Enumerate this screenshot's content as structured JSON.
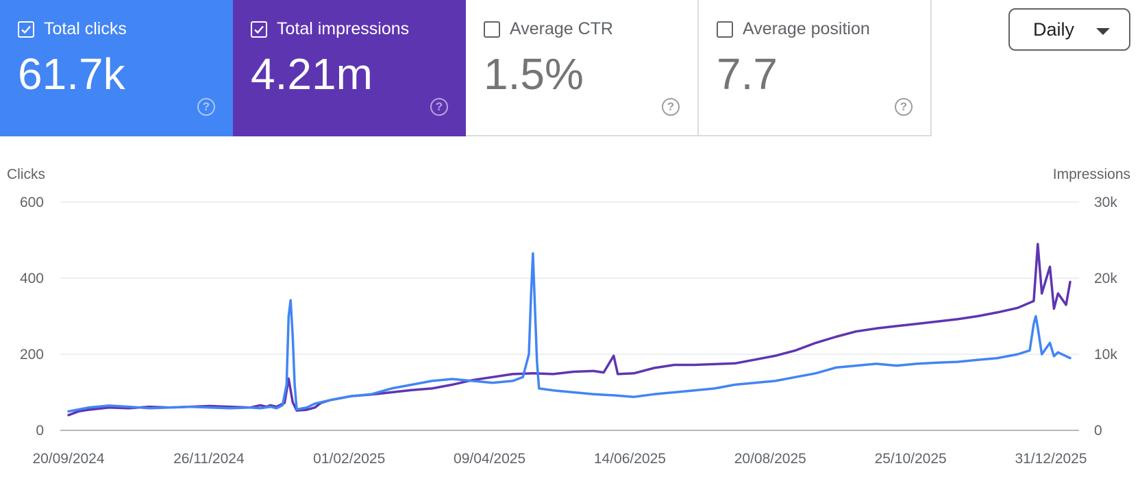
{
  "metrics": [
    {
      "label": "Total clicks",
      "value": "61.7k",
      "checked": true,
      "color": "#4285f4"
    },
    {
      "label": "Total impressions",
      "value": "4.21m",
      "checked": true,
      "color": "#5e35b1"
    },
    {
      "label": "Average CTR",
      "value": "1.5%",
      "checked": false,
      "color": "#ffffff"
    },
    {
      "label": "Average position",
      "value": "7.7",
      "checked": false,
      "color": "#ffffff"
    }
  ],
  "help_glyph": "?",
  "granularity": {
    "selected": "Daily"
  },
  "chart_data": {
    "type": "line",
    "left_axis": {
      "label": "Clicks",
      "ticks": [
        "600",
        "400",
        "200",
        "0"
      ],
      "range": [
        0,
        600
      ]
    },
    "right_axis": {
      "label": "Impressions",
      "ticks": [
        "30k",
        "20k",
        "10k",
        "0"
      ],
      "range": [
        0,
        30000
      ]
    },
    "x_tick_labels": [
      "20/09/2024",
      "26/11/2024",
      "01/02/2025",
      "09/04/2025",
      "14/06/2025",
      "20/08/2025",
      "25/10/2025",
      "31/12/2025"
    ],
    "x_range_days": [
      0,
      496
    ],
    "series": [
      {
        "name": "Impressions",
        "axis": "right",
        "color": "#5e35b1",
        "points": [
          [
            0,
            2000
          ],
          [
            5,
            2500
          ],
          [
            10,
            2700
          ],
          [
            20,
            3000
          ],
          [
            30,
            2900
          ],
          [
            40,
            3100
          ],
          [
            50,
            3000
          ],
          [
            60,
            3100
          ],
          [
            70,
            3200
          ],
          [
            80,
            3100
          ],
          [
            90,
            3000
          ],
          [
            95,
            3300
          ],
          [
            98,
            3100
          ],
          [
            100,
            3300
          ],
          [
            103,
            3100
          ],
          [
            107,
            3600
          ],
          [
            109,
            6800
          ],
          [
            111,
            3700
          ],
          [
            113,
            2600
          ],
          [
            118,
            2700
          ],
          [
            122,
            3000
          ],
          [
            125,
            3600
          ],
          [
            130,
            4000
          ],
          [
            140,
            4500
          ],
          [
            150,
            4700
          ],
          [
            160,
            5000
          ],
          [
            170,
            5300
          ],
          [
            180,
            5500
          ],
          [
            190,
            6000
          ],
          [
            200,
            6600
          ],
          [
            210,
            7000
          ],
          [
            220,
            7400
          ],
          [
            230,
            7500
          ],
          [
            240,
            7400
          ],
          [
            250,
            7700
          ],
          [
            260,
            7800
          ],
          [
            265,
            7600
          ],
          [
            270,
            9800
          ],
          [
            272,
            7400
          ],
          [
            280,
            7500
          ],
          [
            290,
            8200
          ],
          [
            300,
            8600
          ],
          [
            310,
            8600
          ],
          [
            320,
            8700
          ],
          [
            330,
            8800
          ],
          [
            340,
            9300
          ],
          [
            350,
            9800
          ],
          [
            360,
            10500
          ],
          [
            370,
            11500
          ],
          [
            380,
            12300
          ],
          [
            390,
            13000
          ],
          [
            400,
            13400
          ],
          [
            410,
            13700
          ],
          [
            420,
            14000
          ],
          [
            430,
            14300
          ],
          [
            440,
            14600
          ],
          [
            450,
            15000
          ],
          [
            460,
            15500
          ],
          [
            470,
            16100
          ],
          [
            478,
            17000
          ],
          [
            480,
            24500
          ],
          [
            482,
            18000
          ],
          [
            486,
            21500
          ],
          [
            488,
            16000
          ],
          [
            490,
            18000
          ],
          [
            494,
            16500
          ],
          [
            496,
            19500
          ]
        ]
      },
      {
        "name": "Clicks",
        "axis": "left",
        "color": "#4285f4",
        "points": [
          [
            0,
            50
          ],
          [
            10,
            60
          ],
          [
            20,
            65
          ],
          [
            30,
            62
          ],
          [
            40,
            58
          ],
          [
            50,
            60
          ],
          [
            60,
            62
          ],
          [
            70,
            60
          ],
          [
            80,
            58
          ],
          [
            90,
            60
          ],
          [
            95,
            58
          ],
          [
            100,
            62
          ],
          [
            103,
            58
          ],
          [
            106,
            66
          ],
          [
            108,
            120
          ],
          [
            109,
            300
          ],
          [
            110,
            342
          ],
          [
            111,
            250
          ],
          [
            112,
            120
          ],
          [
            113,
            55
          ],
          [
            118,
            60
          ],
          [
            122,
            70
          ],
          [
            130,
            80
          ],
          [
            140,
            90
          ],
          [
            150,
            95
          ],
          [
            160,
            110
          ],
          [
            170,
            120
          ],
          [
            180,
            130
          ],
          [
            190,
            135
          ],
          [
            200,
            130
          ],
          [
            210,
            125
          ],
          [
            220,
            130
          ],
          [
            225,
            140
          ],
          [
            228,
            200
          ],
          [
            229,
            350
          ],
          [
            230,
            465
          ],
          [
            231,
            320
          ],
          [
            232,
            180
          ],
          [
            233,
            110
          ],
          [
            240,
            105
          ],
          [
            250,
            100
          ],
          [
            260,
            95
          ],
          [
            270,
            92
          ],
          [
            280,
            88
          ],
          [
            290,
            95
          ],
          [
            300,
            100
          ],
          [
            310,
            105
          ],
          [
            320,
            110
          ],
          [
            330,
            120
          ],
          [
            340,
            125
          ],
          [
            350,
            130
          ],
          [
            360,
            140
          ],
          [
            370,
            150
          ],
          [
            380,
            165
          ],
          [
            390,
            170
          ],
          [
            400,
            175
          ],
          [
            410,
            170
          ],
          [
            420,
            175
          ],
          [
            430,
            178
          ],
          [
            440,
            180
          ],
          [
            450,
            185
          ],
          [
            460,
            190
          ],
          [
            470,
            200
          ],
          [
            476,
            210
          ],
          [
            478,
            280
          ],
          [
            479,
            300
          ],
          [
            480,
            270
          ],
          [
            482,
            200
          ],
          [
            486,
            230
          ],
          [
            488,
            195
          ],
          [
            490,
            205
          ],
          [
            494,
            195
          ],
          [
            496,
            190
          ]
        ]
      }
    ]
  }
}
